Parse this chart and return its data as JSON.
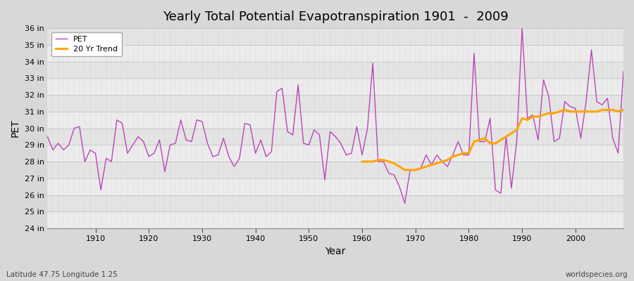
{
  "title": "Yearly Total Potential Evapotranspiration 1901  -  2009",
  "xlabel": "Year",
  "ylabel": "PET",
  "subtitle": "Latitude 47.75 Longitude 1.25",
  "watermark": "worldspecies.org",
  "pet_color": "#bb44bb",
  "trend_color": "#ffa500",
  "bg_color": "#e0e0e0",
  "plot_bg_color": "#f5f5f5",
  "ylim": [
    24,
    36
  ],
  "yticks": [
    24,
    25,
    26,
    27,
    28,
    29,
    30,
    31,
    32,
    33,
    34,
    35,
    36
  ],
  "ytick_labels": [
    "24 in",
    "25 in",
    "26 in",
    "27 in",
    "28 in",
    "29 in",
    "30 in",
    "31 in",
    "32 in",
    "33 in",
    "34 in",
    "35 in",
    "36 in"
  ],
  "years": [
    1901,
    1902,
    1903,
    1904,
    1905,
    1906,
    1907,
    1908,
    1909,
    1910,
    1911,
    1912,
    1913,
    1914,
    1915,
    1916,
    1917,
    1918,
    1919,
    1920,
    1921,
    1922,
    1923,
    1924,
    1925,
    1926,
    1927,
    1928,
    1929,
    1930,
    1931,
    1932,
    1933,
    1934,
    1935,
    1936,
    1937,
    1938,
    1939,
    1940,
    1941,
    1942,
    1943,
    1944,
    1945,
    1946,
    1947,
    1948,
    1949,
    1950,
    1951,
    1952,
    1953,
    1954,
    1955,
    1956,
    1957,
    1958,
    1959,
    1960,
    1961,
    1962,
    1963,
    1964,
    1965,
    1966,
    1967,
    1968,
    1969,
    1970,
    1971,
    1972,
    1973,
    1974,
    1975,
    1976,
    1977,
    1978,
    1979,
    1980,
    1981,
    1982,
    1983,
    1984,
    1985,
    1986,
    1987,
    1988,
    1989,
    1990,
    1991,
    1992,
    1993,
    1994,
    1995,
    1996,
    1997,
    1998,
    1999,
    2000,
    2001,
    2002,
    2003,
    2004,
    2005,
    2006,
    2007,
    2008,
    2009
  ],
  "pet_values": [
    29.5,
    28.7,
    29.1,
    28.7,
    29.0,
    30.0,
    30.1,
    28.0,
    28.7,
    28.5,
    26.3,
    28.2,
    28.0,
    30.5,
    30.3,
    28.5,
    29.0,
    29.5,
    29.2,
    28.3,
    28.5,
    29.3,
    27.4,
    29.0,
    29.1,
    30.5,
    29.3,
    29.2,
    30.5,
    30.4,
    29.1,
    28.3,
    28.4,
    29.4,
    28.3,
    27.7,
    28.2,
    30.3,
    30.2,
    28.5,
    29.3,
    28.3,
    28.6,
    32.2,
    32.4,
    29.8,
    29.6,
    32.6,
    29.1,
    29.0,
    29.9,
    29.6,
    26.9,
    29.8,
    29.5,
    29.1,
    28.4,
    28.5,
    30.1,
    28.4,
    30.0,
    33.9,
    28.0,
    28.0,
    27.3,
    27.2,
    26.5,
    25.5,
    27.5,
    27.5,
    27.6,
    28.4,
    27.8,
    28.4,
    28.0,
    27.7,
    28.4,
    29.2,
    28.4,
    28.4,
    34.5,
    29.2,
    29.2,
    30.6,
    26.3,
    26.1,
    29.5,
    26.4,
    29.3,
    36.0,
    30.6,
    30.8,
    29.3,
    32.9,
    31.9,
    29.2,
    29.4,
    31.6,
    31.3,
    31.2,
    29.4,
    31.6,
    34.7,
    31.6,
    31.4,
    31.8,
    29.4,
    28.5,
    33.4
  ],
  "trend_years": [
    1960,
    1961,
    1962,
    1963,
    1964,
    1965,
    1966,
    1967,
    1968,
    1969,
    1970,
    1971,
    1972,
    1973,
    1974,
    1975,
    1976,
    1977,
    1978,
    1979,
    1980,
    1981,
    1982,
    1983,
    1984,
    1985,
    1986,
    1987,
    1988,
    1989,
    1990,
    1991,
    1992,
    1993,
    1994,
    1995,
    1996,
    1997,
    1998,
    1999,
    2000,
    2001,
    2002,
    2003,
    2004,
    2005,
    2006,
    2007,
    2008,
    2009
  ],
  "trend_values": [
    28.0,
    28.0,
    28.0,
    28.1,
    28.1,
    28.0,
    27.9,
    27.7,
    27.5,
    27.5,
    27.5,
    27.6,
    27.7,
    27.8,
    27.9,
    28.0,
    28.1,
    28.3,
    28.4,
    28.5,
    28.5,
    29.2,
    29.3,
    29.4,
    29.1,
    29.1,
    29.3,
    29.5,
    29.7,
    29.9,
    30.6,
    30.5,
    30.7,
    30.7,
    30.8,
    30.9,
    30.9,
    31.0,
    31.1,
    31.0,
    31.0,
    31.0,
    31.0,
    31.0,
    31.0,
    31.1,
    31.1,
    31.1,
    31.0,
    31.1
  ]
}
